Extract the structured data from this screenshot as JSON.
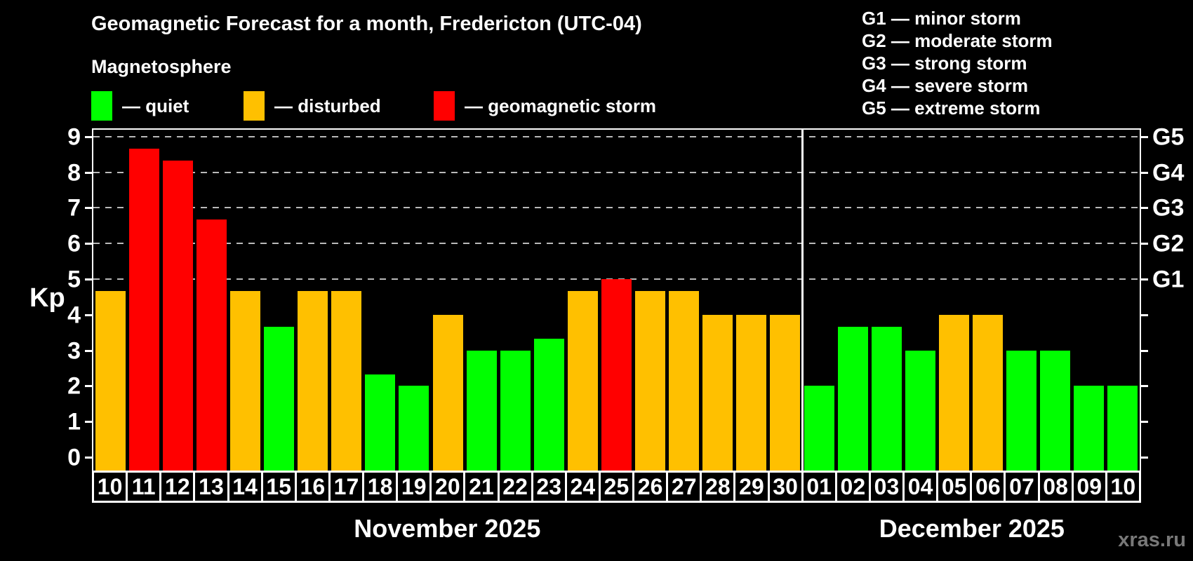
{
  "header": {
    "title": "Geomagnetic Forecast for a month, Fredericton (UTC-04)",
    "subtitle": "Magnetosphere"
  },
  "legend": {
    "items": [
      {
        "label": "— quiet",
        "status": "quiet",
        "color": "#00ff00"
      },
      {
        "label": "— disturbed",
        "status": "disturbed",
        "color": "#ffc000"
      },
      {
        "label": "— geomagnetic storm",
        "status": "storm",
        "color": "#ff0000"
      }
    ]
  },
  "storm_legend": {
    "items": [
      "G1 — minor storm",
      "G2 — moderate storm",
      "G3 — strong storm",
      "G4 — severe storm",
      "G5 — extreme storm"
    ]
  },
  "watermark": "xras.ru",
  "chart_data": {
    "type": "bar",
    "title": "Geomagnetic Forecast for a month, Fredericton (UTC-04)",
    "ylabel": "Kp",
    "ylim": [
      0,
      9.4
    ],
    "y_ticks": [
      0,
      1,
      2,
      3,
      4,
      5,
      6,
      7,
      8,
      9
    ],
    "gridlines": [
      5,
      6,
      7,
      8,
      9
    ],
    "grid_style": "dashed horizontal lines only at Kp 5-9 (G-storm levels)",
    "right_axis_labels": [
      {
        "value": 5,
        "label": "G1"
      },
      {
        "value": 6,
        "label": "G2"
      },
      {
        "value": 7,
        "label": "G3"
      },
      {
        "value": 8,
        "label": "G4"
      },
      {
        "value": 9,
        "label": "G5"
      }
    ],
    "colors": {
      "quiet": "#00ff00",
      "disturbed": "#ffc000",
      "storm": "#ff0000"
    },
    "months": [
      {
        "label": "November 2025",
        "days": 21
      },
      {
        "label": "December 2025",
        "days": 10
      }
    ],
    "bars": [
      {
        "day": "10",
        "month": "November 2025",
        "value": 4.67,
        "status": "disturbed"
      },
      {
        "day": "11",
        "month": "November 2025",
        "value": 8.67,
        "status": "storm"
      },
      {
        "day": "12",
        "month": "November 2025",
        "value": 8.33,
        "status": "storm"
      },
      {
        "day": "13",
        "month": "November 2025",
        "value": 6.67,
        "status": "storm"
      },
      {
        "day": "14",
        "month": "November 2025",
        "value": 4.67,
        "status": "disturbed"
      },
      {
        "day": "15",
        "month": "November 2025",
        "value": 3.67,
        "status": "quiet"
      },
      {
        "day": "16",
        "month": "November 2025",
        "value": 4.67,
        "status": "disturbed"
      },
      {
        "day": "17",
        "month": "November 2025",
        "value": 4.67,
        "status": "disturbed"
      },
      {
        "day": "18",
        "month": "November 2025",
        "value": 2.33,
        "status": "quiet"
      },
      {
        "day": "19",
        "month": "November 2025",
        "value": 2.0,
        "status": "quiet"
      },
      {
        "day": "20",
        "month": "November 2025",
        "value": 4.0,
        "status": "disturbed"
      },
      {
        "day": "21",
        "month": "November 2025",
        "value": 3.0,
        "status": "quiet"
      },
      {
        "day": "22",
        "month": "November 2025",
        "value": 3.0,
        "status": "quiet"
      },
      {
        "day": "23",
        "month": "November 2025",
        "value": 3.33,
        "status": "quiet"
      },
      {
        "day": "24",
        "month": "November 2025",
        "value": 4.67,
        "status": "disturbed"
      },
      {
        "day": "25",
        "month": "November 2025",
        "value": 5.0,
        "status": "storm"
      },
      {
        "day": "26",
        "month": "November 2025",
        "value": 4.67,
        "status": "disturbed"
      },
      {
        "day": "27",
        "month": "November 2025",
        "value": 4.67,
        "status": "disturbed"
      },
      {
        "day": "28",
        "month": "November 2025",
        "value": 4.0,
        "status": "disturbed"
      },
      {
        "day": "29",
        "month": "November 2025",
        "value": 4.0,
        "status": "disturbed"
      },
      {
        "day": "30",
        "month": "November 2025",
        "value": 4.0,
        "status": "disturbed"
      },
      {
        "day": "01",
        "month": "December 2025",
        "value": 2.0,
        "status": "quiet"
      },
      {
        "day": "02",
        "month": "December 2025",
        "value": 3.67,
        "status": "quiet"
      },
      {
        "day": "03",
        "month": "December 2025",
        "value": 3.67,
        "status": "quiet"
      },
      {
        "day": "04",
        "month": "December 2025",
        "value": 3.0,
        "status": "quiet"
      },
      {
        "day": "05",
        "month": "December 2025",
        "value": 4.0,
        "status": "disturbed"
      },
      {
        "day": "06",
        "month": "December 2025",
        "value": 4.0,
        "status": "disturbed"
      },
      {
        "day": "07",
        "month": "December 2025",
        "value": 3.0,
        "status": "quiet"
      },
      {
        "day": "08",
        "month": "December 2025",
        "value": 3.0,
        "status": "quiet"
      },
      {
        "day": "09",
        "month": "December 2025",
        "value": 2.0,
        "status": "quiet"
      },
      {
        "day": "10",
        "month": "December 2025",
        "value": 2.0,
        "status": "quiet"
      }
    ]
  }
}
